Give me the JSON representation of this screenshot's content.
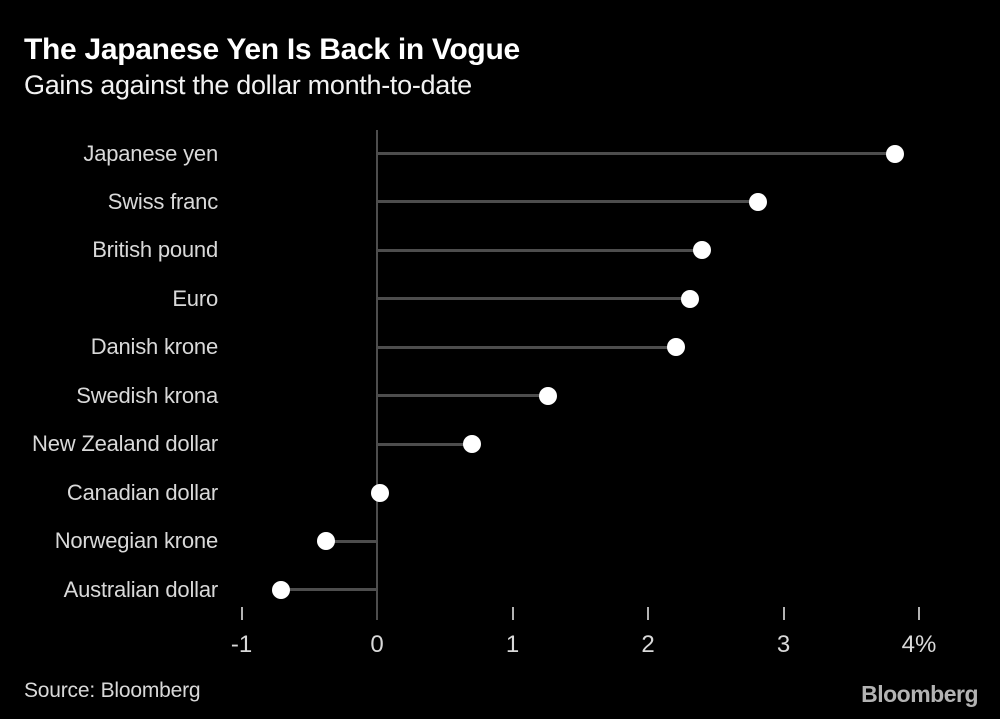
{
  "header": {
    "title": "The Japanese Yen Is Back in Vogue",
    "subtitle": "Gains against the dollar month-to-date"
  },
  "chart_data": {
    "type": "bar",
    "variant": "lollipop-dot",
    "orientation": "horizontal",
    "title": "The Japanese Yen Is Back in Vogue",
    "subtitle": "Gains against the dollar month-to-date",
    "categories": [
      "Japanese yen",
      "Swiss franc",
      "British pound",
      "Euro",
      "Danish krone",
      "Swedish krona",
      "New Zealand dollar",
      "Canadian dollar",
      "Norwegian krone",
      "Australian dollar"
    ],
    "values": [
      3.82,
      2.81,
      2.4,
      2.31,
      2.21,
      1.26,
      0.7,
      0.02,
      -0.38,
      -0.71
    ],
    "unit": "percent",
    "xlabel": "",
    "ylabel": "",
    "xlim": [
      -1.3,
      4.6
    ],
    "xticks": [
      -1,
      0,
      1,
      2,
      3,
      4
    ],
    "xtick_labels": [
      "-1",
      "0",
      "1",
      "2",
      "3",
      "4%"
    ],
    "grid": false,
    "legend": false,
    "baseline": 0
  },
  "footer": {
    "source": "Source: Bloomberg",
    "logo": "Bloomberg"
  },
  "colors": {
    "background": "#000000",
    "title": "#ffffff",
    "subtitle": "#f2f2f2",
    "category_label": "#d9d9d9",
    "stem": "#4d4d4d",
    "axis": "#4d4d4d",
    "tick": "#b3b3b3",
    "tick_label": "#d9d9d9",
    "dot": "#ffffff",
    "source_text": "#d9d9d9",
    "logo_text": "#b3b3b3"
  }
}
